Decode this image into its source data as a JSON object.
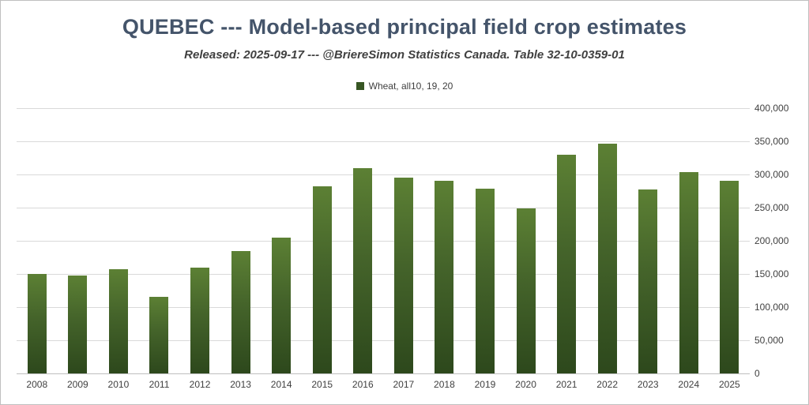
{
  "header": {
    "title": "QUEBEC --- Model-based principal field crop estimates",
    "subtitle": "Released: 2025-09-17 --- @BriereSimon Statistics Canada. Table 32-10-0359-01"
  },
  "legend": {
    "label": "Wheat, all10, 19, 20",
    "swatch_color": "#375623"
  },
  "colors": {
    "bar_top": "#5c8034",
    "bar_bottom": "#2d481c",
    "title": "#44546a",
    "gridline": "#d9d9d9"
  },
  "chart_data": {
    "type": "bar",
    "title": "QUEBEC --- Model-based principal field crop estimates",
    "subtitle": "Released: 2025-09-17 --- @BriereSimon Statistics Canada. Table 32-10-0359-01",
    "series_name": "Wheat, all10, 19, 20",
    "categories": [
      "2008",
      "2009",
      "2010",
      "2011",
      "2012",
      "2013",
      "2014",
      "2015",
      "2016",
      "2017",
      "2018",
      "2019",
      "2020",
      "2021",
      "2022",
      "2023",
      "2024",
      "2025"
    ],
    "values": [
      150000,
      148000,
      157000,
      116000,
      160000,
      184000,
      205000,
      282000,
      310000,
      295000,
      290000,
      278000,
      249000,
      330000,
      347000,
      277000,
      303000,
      290000
    ],
    "xlabel": "",
    "ylabel": "",
    "ylim": [
      0,
      400000
    ],
    "yticks": [
      0,
      50000,
      100000,
      150000,
      200000,
      250000,
      300000,
      350000,
      400000
    ],
    "grid": true,
    "legend_position": "top-center"
  }
}
